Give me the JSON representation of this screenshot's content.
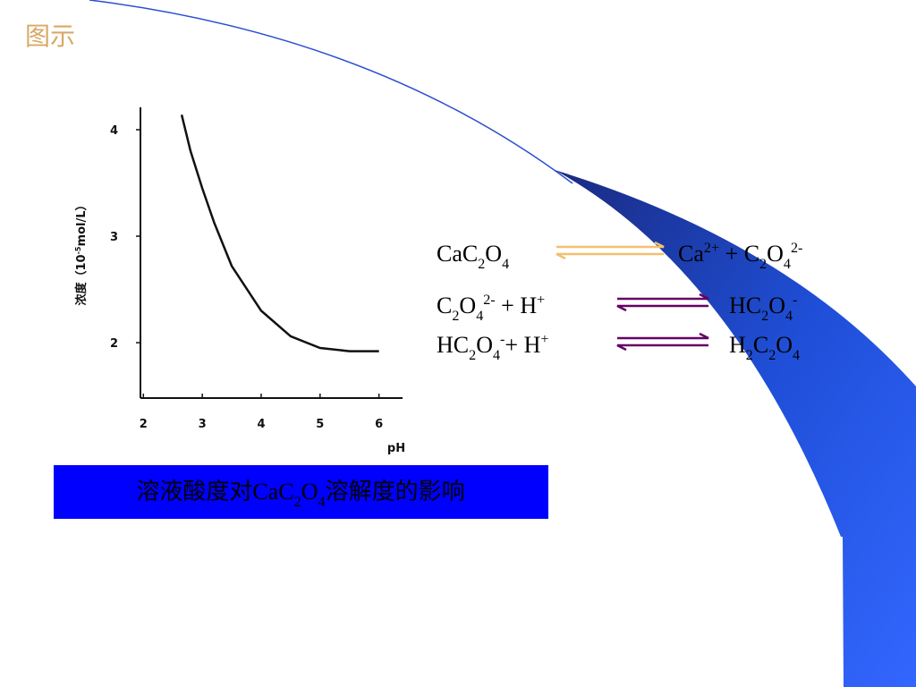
{
  "header": {
    "title": "图示"
  },
  "chart_data": {
    "type": "line",
    "x_label": "pH",
    "y_label": [
      "浓度（10",
      {
        "text": "-5",
        "pos": "sup"
      },
      "mol/L）"
    ],
    "x": [
      2.65,
      2.8,
      3.0,
      3.2,
      3.5,
      4.0,
      4.5,
      5.0,
      5.5,
      6.0
    ],
    "series": [
      {
        "color": "#111111",
        "values": [
          4.14,
          3.8,
          3.45,
          3.13,
          2.72,
          2.3,
          2.06,
          1.95,
          1.92,
          1.92
        ]
      }
    ],
    "xlim": [
      1.95,
      6.4
    ],
    "ylim": [
      1.48,
      4.21
    ],
    "xticks": [
      2,
      3,
      4,
      5,
      6
    ],
    "yticks": [
      2,
      3,
      4
    ]
  },
  "caption": [
    "溶液酸度对CaC",
    {
      "text": "2",
      "pos": "sub"
    },
    "O",
    {
      "text": "4",
      "pos": "sub"
    },
    "溶解度的影响"
  ],
  "equations": [
    {
      "left": [
        "CaC",
        {
          "text": "2",
          "pos": "sub"
        },
        "O",
        {
          "text": "4",
          "pos": "sub"
        }
      ],
      "right": [
        "Ca",
        {
          "text": "2+",
          "pos": "sup"
        },
        " + C",
        {
          "text": "2",
          "pos": "sub"
        },
        "O",
        {
          "text": "4",
          "pos": "sub"
        },
        {
          "text": "2-",
          "pos": "sup"
        }
      ]
    },
    {
      "left": [
        "C",
        {
          "text": "2",
          "pos": "sub"
        },
        "O",
        {
          "text": "4",
          "pos": "sub"
        },
        {
          "text": "2-",
          "pos": "sup"
        },
        " + H",
        {
          "text": "+",
          "pos": "sup"
        }
      ],
      "right": [
        "HC",
        {
          "text": "2",
          "pos": "sub"
        },
        "O",
        {
          "text": "4",
          "pos": "sub"
        },
        {
          "text": "-",
          "pos": "sup"
        }
      ]
    },
    {
      "left": [
        "HC",
        {
          "text": "2",
          "pos": "sub"
        },
        "O",
        {
          "text": "4",
          "pos": "sub"
        },
        {
          "text": "-",
          "pos": "sup"
        },
        "+ H",
        {
          "text": "+",
          "pos": "sup"
        }
      ],
      "right": [
        "H",
        {
          "text": "2",
          "pos": "sub"
        },
        "C",
        {
          "text": "2",
          "pos": "sub"
        },
        "O",
        {
          "text": "4",
          "pos": "sub"
        }
      ]
    }
  ]
}
